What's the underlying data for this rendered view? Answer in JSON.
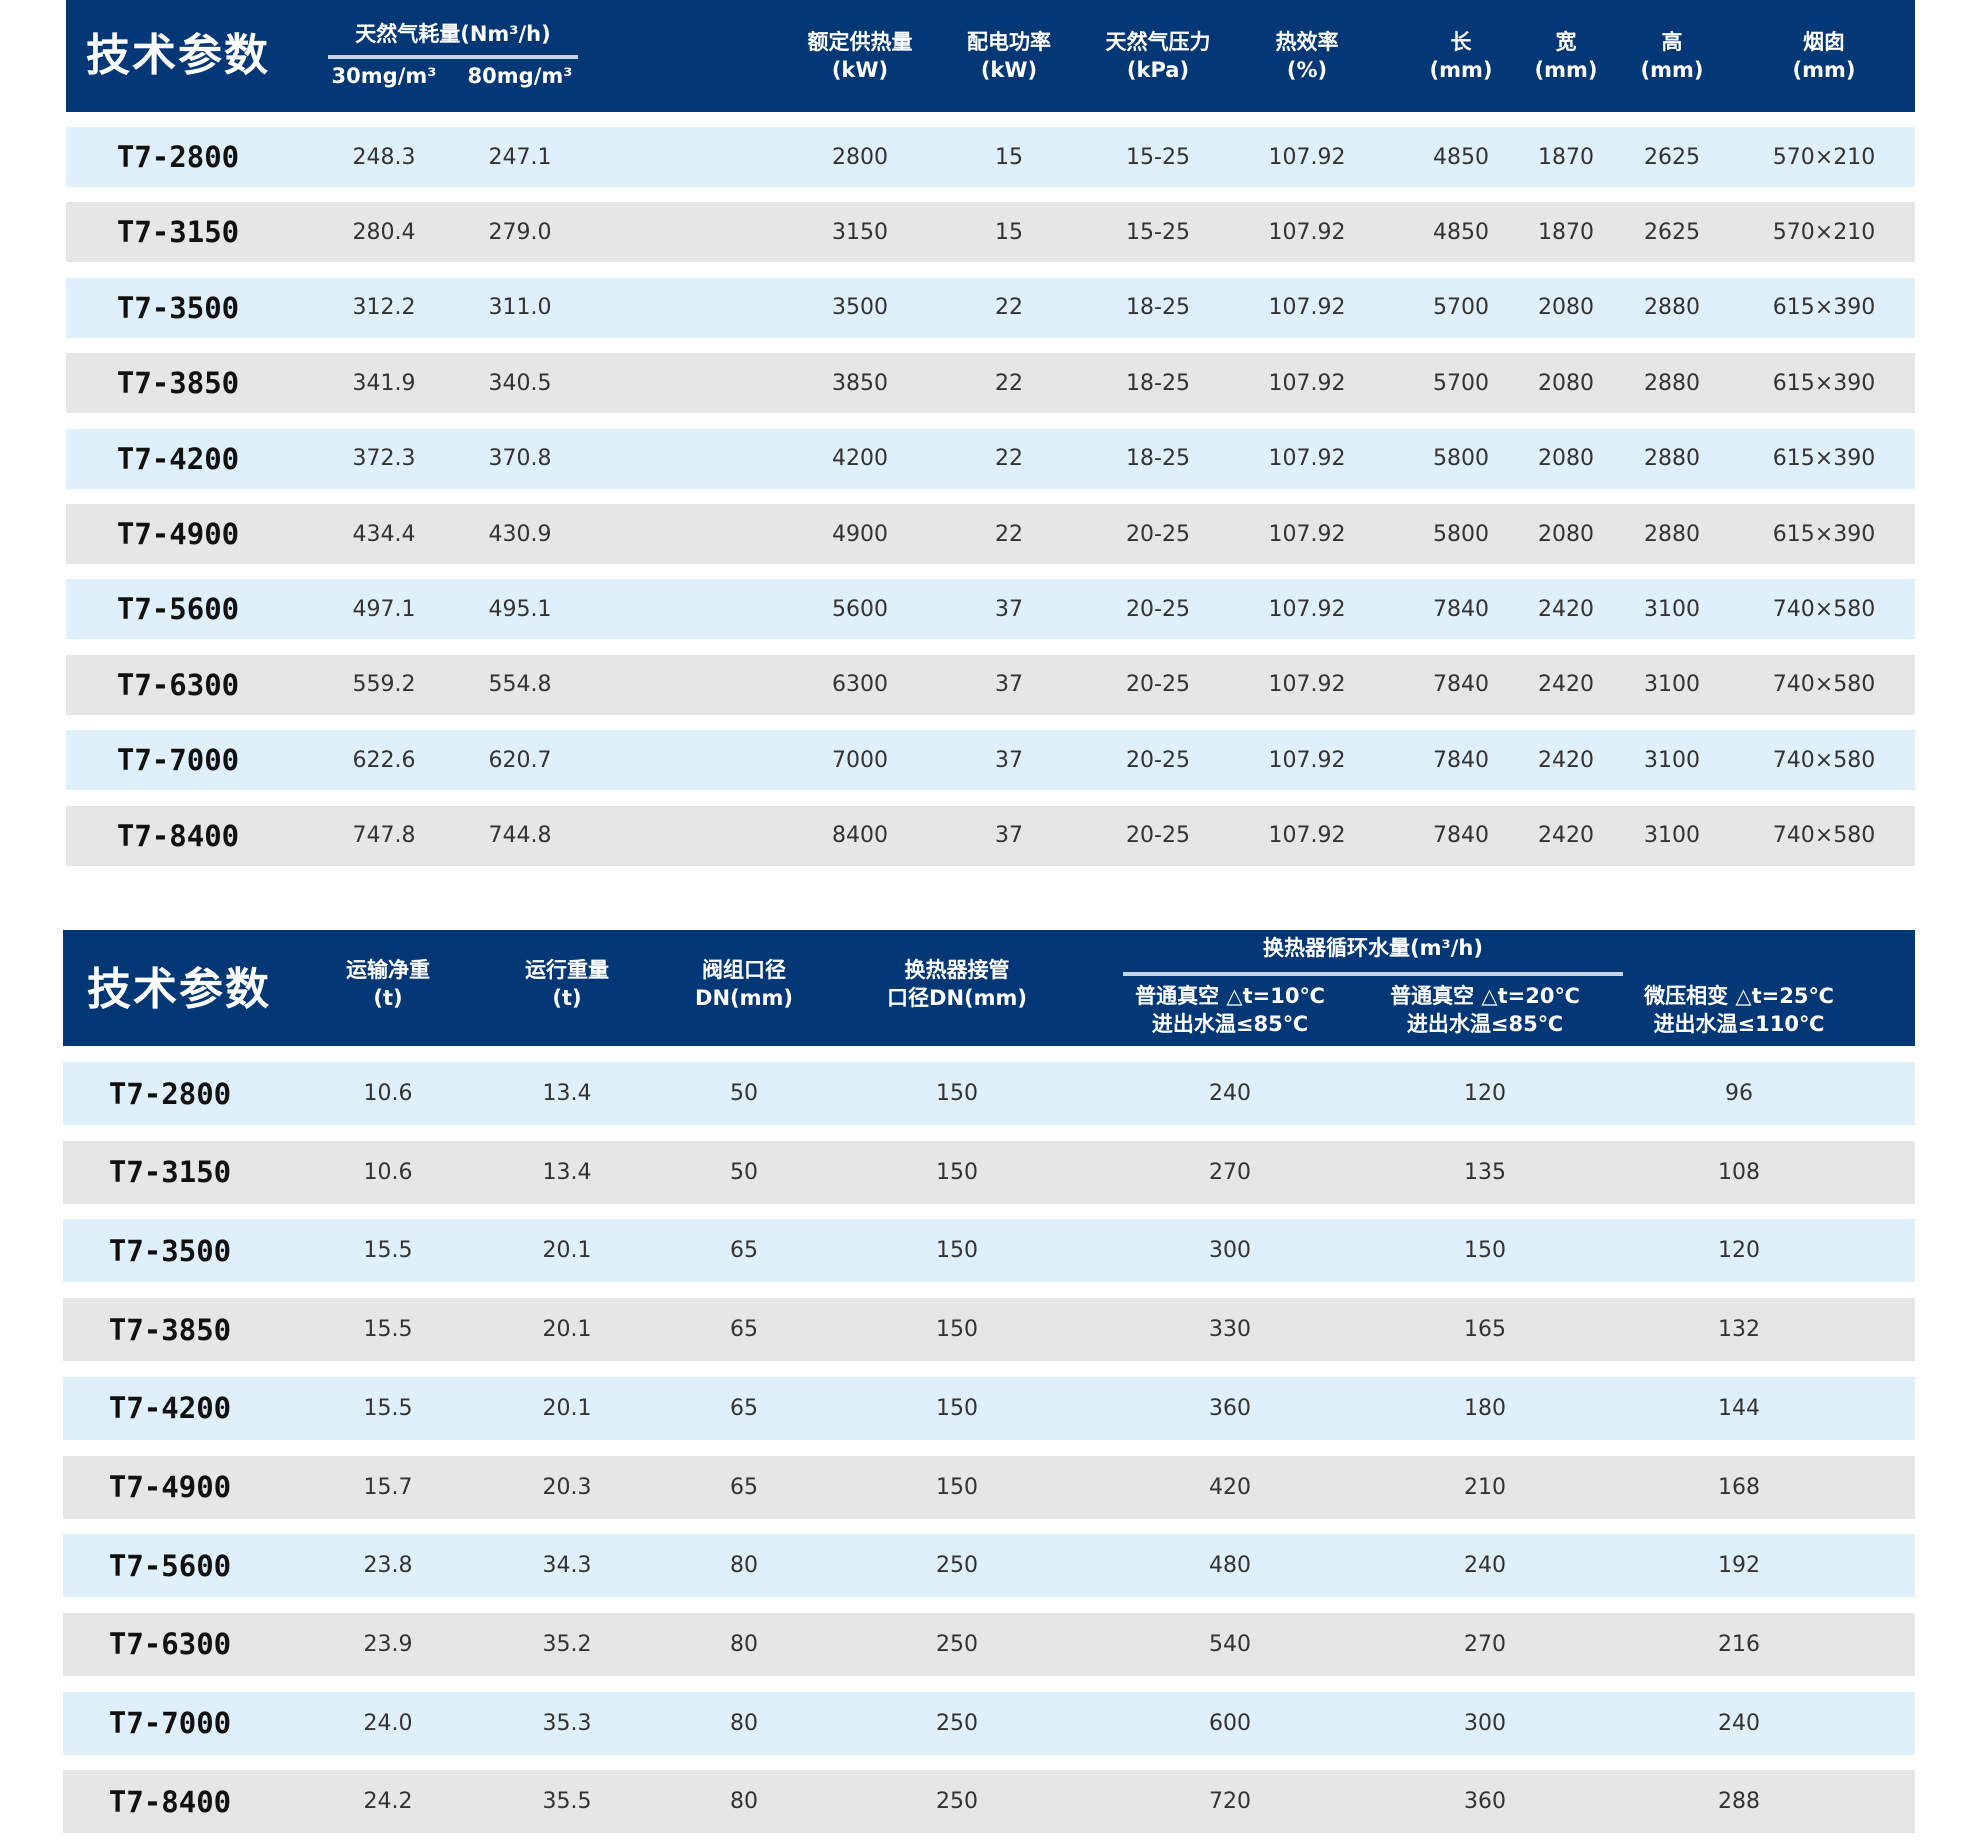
{
  "colors": {
    "header": "#043775",
    "row_light": "#dff0fa",
    "row_gray": "#e6e6e6"
  },
  "table1": {
    "title": "技术参数",
    "gas_group": "天然气耗量(Nm³/h)",
    "headers": [
      "30mg/m³",
      "80mg/m³",
      "额定供热量\n(kW)",
      "配电功率\n(kW)",
      "天然气压力\n(kPa)",
      "热效率\n(%)",
      "长\n(mm)",
      "宽\n(mm)",
      "高\n(mm)",
      "烟囱\n(mm)"
    ],
    "rows": [
      [
        "T7-2800",
        "248.3",
        "247.1",
        "2800",
        "15",
        "15-25",
        "107.92",
        "4850",
        "1870",
        "2625",
        "570×210"
      ],
      [
        "T7-3150",
        "280.4",
        "279.0",
        "3150",
        "15",
        "15-25",
        "107.92",
        "4850",
        "1870",
        "2625",
        "570×210"
      ],
      [
        "T7-3500",
        "312.2",
        "311.0",
        "3500",
        "22",
        "18-25",
        "107.92",
        "5700",
        "2080",
        "2880",
        "615×390"
      ],
      [
        "T7-3850",
        "341.9",
        "340.5",
        "3850",
        "22",
        "18-25",
        "107.92",
        "5700",
        "2080",
        "2880",
        "615×390"
      ],
      [
        "T7-4200",
        "372.3",
        "370.8",
        "4200",
        "22",
        "18-25",
        "107.92",
        "5800",
        "2080",
        "2880",
        "615×390"
      ],
      [
        "T7-4900",
        "434.4",
        "430.9",
        "4900",
        "22",
        "20-25",
        "107.92",
        "5800",
        "2080",
        "2880",
        "615×390"
      ],
      [
        "T7-5600",
        "497.1",
        "495.1",
        "5600",
        "37",
        "20-25",
        "107.92",
        "7840",
        "2420",
        "3100",
        "740×580"
      ],
      [
        "T7-6300",
        "559.2",
        "554.8",
        "6300",
        "37",
        "20-25",
        "107.92",
        "7840",
        "2420",
        "3100",
        "740×580"
      ],
      [
        "T7-7000",
        "622.6",
        "620.7",
        "7000",
        "37",
        "20-25",
        "107.92",
        "7840",
        "2420",
        "3100",
        "740×580"
      ],
      [
        "T7-8400",
        "747.8",
        "744.8",
        "8400",
        "37",
        "20-25",
        "107.92",
        "7840",
        "2420",
        "3100",
        "740×580"
      ]
    ]
  },
  "table2": {
    "title": "技术参数",
    "water_group": "换热器循环水量(m³/h)",
    "headers": [
      "运输净重\n(t)",
      "运行重量\n(t)",
      "阀组口径\nDN(mm)",
      "换热器接管\n口径DN(mm)",
      "普通真空 △t=10℃\n进出水温≤85℃",
      "普通真空 △t=20℃\n进出水温≤85℃",
      "微压相变 △t=25℃\n进出水温≤110℃"
    ],
    "rows": [
      [
        "T7-2800",
        "10.6",
        "13.4",
        "50",
        "150",
        "240",
        "120",
        "96"
      ],
      [
        "T7-3150",
        "10.6",
        "13.4",
        "50",
        "150",
        "270",
        "135",
        "108"
      ],
      [
        "T7-3500",
        "15.5",
        "20.1",
        "65",
        "150",
        "300",
        "150",
        "120"
      ],
      [
        "T7-3850",
        "15.5",
        "20.1",
        "65",
        "150",
        "330",
        "165",
        "132"
      ],
      [
        "T7-4200",
        "15.5",
        "20.1",
        "65",
        "150",
        "360",
        "180",
        "144"
      ],
      [
        "T7-4900",
        "15.7",
        "20.3",
        "65",
        "150",
        "420",
        "210",
        "168"
      ],
      [
        "T7-5600",
        "23.8",
        "34.3",
        "80",
        "250",
        "480",
        "240",
        "192"
      ],
      [
        "T7-6300",
        "23.9",
        "35.2",
        "80",
        "250",
        "540",
        "270",
        "216"
      ],
      [
        "T7-7000",
        "24.0",
        "35.3",
        "80",
        "250",
        "600",
        "300",
        "240"
      ],
      [
        "T7-8400",
        "24.2",
        "35.5",
        "80",
        "250",
        "720",
        "360",
        "288"
      ]
    ]
  }
}
